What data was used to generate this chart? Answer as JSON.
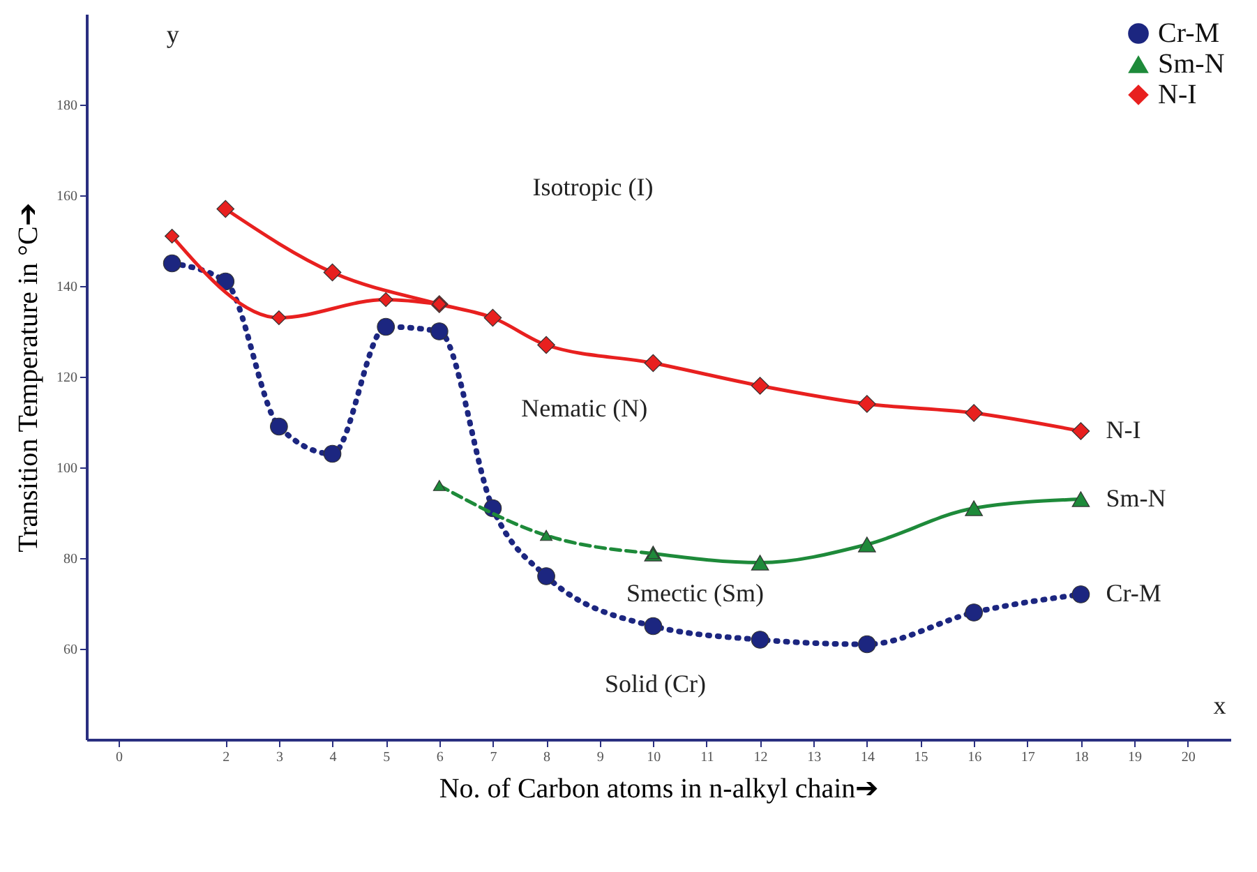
{
  "chart_data": {
    "type": "line",
    "xlabel": "No. of Carbon atoms in n-alkyl chain➔",
    "ylabel": "Transition Temperature in °C➔",
    "xlim": [
      -0.6,
      20.8
    ],
    "xticks": [
      0,
      2,
      3,
      4,
      5,
      6,
      7,
      8,
      9,
      10,
      11,
      12,
      13,
      14,
      15,
      16,
      17,
      18,
      19,
      20
    ],
    "ylim": [
      40,
      200
    ],
    "yticks": [
      60,
      80,
      100,
      120,
      140,
      160,
      180
    ],
    "grid": false,
    "legend": "top right",
    "series": [
      {
        "name": "Cr-M",
        "color": "#1c2680",
        "marker": "circle",
        "line_style": "dotted",
        "x": [
          1,
          2,
          3,
          4,
          5,
          6,
          7,
          8,
          10,
          12,
          14,
          16,
          18
        ],
        "values": [
          145,
          141,
          109,
          103,
          131,
          130,
          91,
          76,
          65,
          62,
          61,
          68,
          72
        ]
      },
      {
        "name": "Sm-N",
        "color": "#1e8a3a",
        "marker": "triangle",
        "line_style": "solid",
        "x": [
          10,
          12,
          14,
          16,
          18
        ],
        "values": [
          81,
          79,
          83,
          91,
          93
        ]
      },
      {
        "color": "#1e8a3a",
        "marker": "triangle",
        "line_style": "dashed",
        "x": [
          6,
          8,
          10
        ],
        "values": [
          96,
          85,
          81
        ]
      },
      {
        "name": "N-I",
        "color": "#e8201f",
        "marker": "diamond",
        "line_style": "solid",
        "x": [
          2,
          4,
          6,
          7,
          8,
          10,
          12,
          14,
          16,
          18
        ],
        "values": [
          157,
          143,
          136,
          133,
          127,
          123,
          118,
          114,
          112,
          108
        ]
      },
      {
        "color": "#e8201f",
        "marker": "diamond",
        "line_style": "solid",
        "x": [
          1,
          3,
          5,
          6
        ],
        "values": [
          151,
          133,
          137,
          136
        ]
      }
    ],
    "annotations": [
      "Isotropic (I)",
      "Nematic (N)",
      "Smectic (Sm)",
      "Solid (Cr)",
      "y",
      "x"
    ]
  }
}
